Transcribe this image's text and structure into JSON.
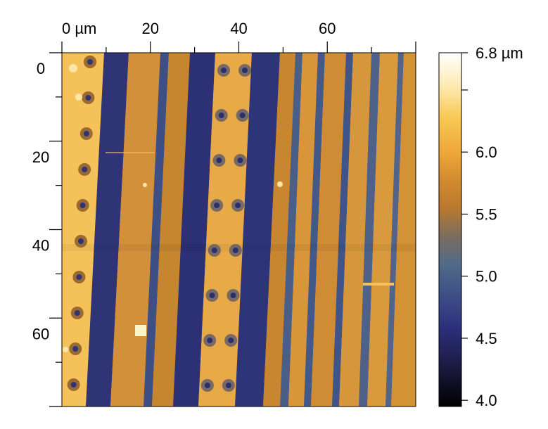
{
  "image": {
    "x_axis": {
      "ticks": [
        "0 µm",
        "20",
        "40",
        "60"
      ],
      "values": [
        0,
        20,
        40,
        60
      ],
      "range": [
        0,
        80
      ]
    },
    "y_axis": {
      "ticks": [
        "0",
        "20",
        "40",
        "60"
      ],
      "values": [
        0,
        20,
        40,
        60
      ],
      "range": [
        0,
        80
      ]
    }
  },
  "colorbar": {
    "ticks": [
      "6.8 µm",
      "6.0",
      "5.5",
      "5.0",
      "4.5",
      "4.0"
    ],
    "values": [
      6.8,
      6.0,
      5.5,
      5.0,
      4.5,
      4.0
    ],
    "min": 3.95,
    "max": 6.8
  }
}
